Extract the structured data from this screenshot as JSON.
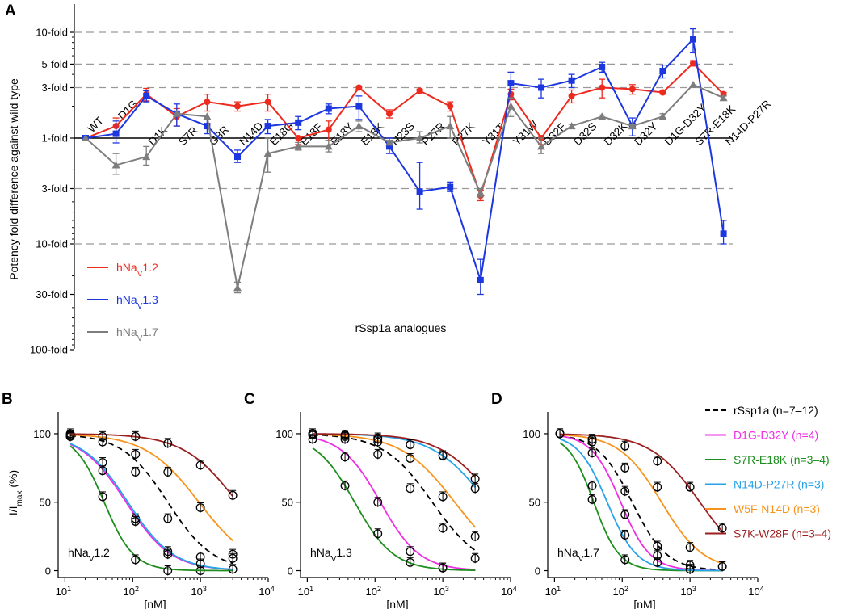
{
  "colors": {
    "hNav1_2": "#ee2a1e",
    "hNav1_3": "#1c37e0",
    "hNav1_7": "#7d7d7d",
    "rSsp1a": "#000000",
    "D1G-D32Y": "#ee2ee4",
    "S7R-E18K": "#1d8e1d",
    "N14D-P27R": "#27a3e8",
    "W5F-N14D": "#f7941d",
    "S7K-W28F": "#9b1f1f",
    "gridline": "#999999"
  },
  "chart_data": [
    {
      "panel": "A",
      "type": "line",
      "title": "",
      "xlabel": "rSsp1a analogues",
      "ylabel": "Potency fold difference against wild type",
      "ylabel_parts": {
        "pre": "Potency fold difference against wild type"
      },
      "scale": "log",
      "ylim_fold": [
        -100,
        20
      ],
      "y_ticks": [
        {
          "value": 10,
          "label": "10-fold",
          "dashed": true
        },
        {
          "value": 5,
          "label": "5-fold",
          "dashed": true
        },
        {
          "value": 3,
          "label": "3-fold",
          "dashed": true
        },
        {
          "value": 1,
          "label": "1-fold",
          "solid": true
        },
        {
          "value": -3,
          "label": "3-fold",
          "dashed": true
        },
        {
          "value": -10,
          "label": "10-fold",
          "dashed": true
        },
        {
          "value": -30,
          "label": "30-fold",
          "dashed": false
        },
        {
          "value": -100,
          "label": "100-fold",
          "dashed": false
        }
      ],
      "categories": [
        "WT",
        "D1G",
        "D1K",
        "S7R",
        "G8R",
        "N14D",
        "E18G",
        "E18F",
        "E18Y",
        "E18K",
        "H23S",
        "P27R",
        "P27K",
        "Y31T",
        "Y31W",
        "D32F",
        "D32S",
        "D32K",
        "D32Y",
        "D1G-D32Y",
        "S7R-E18K",
        "N14D-P27R"
      ],
      "series": [
        {
          "name": "hNaV1.2",
          "legend_main": "hNa",
          "legend_sub": "V",
          "legend_tail": "1.2",
          "color_key": "hNav1_2",
          "marker": "circle",
          "values": [
            1.0,
            1.3,
            2.6,
            1.6,
            2.2,
            2.0,
            2.2,
            -1.0,
            1.2,
            3.0,
            1.7,
            2.8,
            2.0,
            -3.5,
            2.6,
            -1.0,
            2.5,
            3.0,
            2.9,
            2.7,
            5.1,
            2.6
          ],
          "errors": [
            0,
            0.25,
            0.35,
            0.3,
            0.4,
            0.2,
            0.4,
            0.15,
            0.25,
            0.1,
            0.15,
            0.1,
            0.2,
            0.4,
            0.3,
            0.15,
            0.35,
            0.6,
            0.3,
            0.1,
            0.3,
            0.1
          ]
        },
        {
          "name": "hNaV1.3",
          "legend_main": "hNa",
          "legend_sub": "V",
          "legend_tail": "1.3",
          "color_key": "hNav1_3",
          "marker": "square",
          "values": [
            1.0,
            1.1,
            2.5,
            1.7,
            1.3,
            -1.5,
            1.3,
            1.4,
            1.9,
            2.0,
            -1.2,
            -3.2,
            -2.9,
            -22,
            3.3,
            3.0,
            3.5,
            4.7,
            1.3,
            4.3,
            8.6,
            -8.0
          ],
          "errors": [
            0,
            0.35,
            0.3,
            0.4,
            0.2,
            0.2,
            0.2,
            0.2,
            0.2,
            0.5,
            0.2,
            1.5,
            0.3,
            8,
            0.9,
            0.6,
            0.5,
            0.5,
            0.25,
            0.6,
            2.2,
            2.0
          ]
        },
        {
          "name": "hNaV1.7",
          "legend_main": "hNa",
          "legend_sub": "V",
          "legend_tail": "1.7",
          "color_key": "hNav1_7",
          "marker": "triangle",
          "values": [
            1.0,
            -1.8,
            -1.5,
            1.7,
            1.6,
            -26,
            -1.4,
            -1.2,
            -1.2,
            1.3,
            -1.1,
            1.0,
            1.3,
            -3.3,
            2.0,
            -1.2,
            1.3,
            1.6,
            1.3,
            1.6,
            3.2,
            2.4
          ],
          "errors": [
            0,
            0.4,
            0.3,
            0,
            0,
            3,
            0.7,
            0.1,
            0.15,
            0.15,
            0.05,
            0.15,
            0.3,
            0.3,
            0.4,
            0.2,
            0.05,
            0.05,
            0.05,
            0.1,
            0,
            0.1
          ]
        }
      ]
    },
    {
      "panel": "B",
      "type": "scatter",
      "panel_label_main": "hNa",
      "panel_label_sub": "V",
      "panel_label_tail": "1.2",
      "xlabel": "[nM]",
      "ylabel_main": "I/I",
      "ylabel_sub": "max",
      "ylabel_tail": " (%)",
      "x_ticks": [
        {
          "base": "10",
          "exp": "1"
        },
        {
          "base": "10",
          "exp": "2"
        },
        {
          "base": "10",
          "exp": "3"
        },
        {
          "base": "10",
          "exp": "4"
        }
      ],
      "y_ticks": [
        "0",
        "50",
        "100"
      ],
      "xlim_log10": [
        0.9,
        4.0
      ],
      "ylim": [
        -5,
        110
      ],
      "series": [
        {
          "name": "rSsp1a",
          "color_key": "rSsp1a",
          "ic50": 330,
          "hill": 1.3,
          "dashed": true,
          "points": [
            [
              12,
              99
            ],
            [
              36,
              94
            ],
            [
              110,
              72
            ],
            [
              330,
              38
            ],
            [
              1000,
              10
            ],
            [
              3000,
              9
            ]
          ]
        },
        {
          "name": "D1G-D32Y",
          "color_key": "D1G-D32Y",
          "ic50": 80,
          "hill": 1.3,
          "points": [
            [
              12,
              99
            ],
            [
              36,
              79
            ],
            [
              110,
              38
            ],
            [
              330,
              14
            ],
            [
              1000,
              0
            ]
          ]
        },
        {
          "name": "S7R-E18K",
          "color_key": "S7R-E18K",
          "ic50": 38,
          "hill": 2.0,
          "points": [
            [
              12,
              98
            ],
            [
              36,
              54
            ],
            [
              110,
              8
            ],
            [
              330,
              0
            ]
          ]
        },
        {
          "name": "N14D-P27R",
          "color_key": "N14D-P27R",
          "ic50": 85,
          "hill": 1.3,
          "points": [
            [
              12,
              98
            ],
            [
              36,
              73
            ],
            [
              110,
              36
            ],
            [
              330,
              12
            ],
            [
              1000,
              5
            ],
            [
              3000,
              1
            ]
          ]
        },
        {
          "name": "W5F-N14D",
          "color_key": "W5F-N14D",
          "ic50": 950,
          "hill": 1.1,
          "points": [
            [
              12,
              99
            ],
            [
              110,
              85
            ],
            [
              330,
              72
            ],
            [
              1000,
              46
            ],
            [
              3000,
              12
            ]
          ]
        },
        {
          "name": "S7K-W28F",
          "color_key": "S7K-W28F",
          "ic50": 3500,
          "hill": 1.1,
          "points": [
            [
              12,
              100
            ],
            [
              36,
              98
            ],
            [
              110,
              98
            ],
            [
              330,
              93
            ],
            [
              1000,
              77
            ],
            [
              3000,
              55
            ]
          ]
        }
      ]
    },
    {
      "panel": "C",
      "type": "scatter",
      "panel_label_main": "hNa",
      "panel_label_sub": "V",
      "panel_label_tail": "1.3",
      "xlabel": "[nM]",
      "x_ticks": [
        {
          "base": "10",
          "exp": "1"
        },
        {
          "base": "10",
          "exp": "2"
        },
        {
          "base": "10",
          "exp": "3"
        },
        {
          "base": "10",
          "exp": "4"
        }
      ],
      "y_ticks": [
        "0",
        "50",
        "100"
      ],
      "xlim_log10": [
        0.9,
        4.0
      ],
      "ylim": [
        -5,
        110
      ],
      "series": [
        {
          "name": "rSsp1a",
          "color_key": "rSsp1a",
          "ic50": 700,
          "hill": 1.2,
          "dashed": true,
          "points": [
            [
              12,
              99
            ],
            [
              36,
              96
            ],
            [
              110,
              85
            ],
            [
              330,
              60
            ],
            [
              1000,
              31
            ],
            [
              3000,
              9
            ]
          ]
        },
        {
          "name": "D1G-D32Y",
          "color_key": "D1G-D32Y",
          "ic50": 120,
          "hill": 1.5,
          "points": [
            [
              12,
              99
            ],
            [
              36,
              83
            ],
            [
              110,
              50
            ],
            [
              330,
              14
            ],
            [
              1000,
              2
            ]
          ]
        },
        {
          "name": "S7R-E18K",
          "color_key": "S7R-E18K",
          "ic50": 50,
          "hill": 1.5,
          "points": [
            [
              12,
              96
            ],
            [
              36,
              62
            ],
            [
              110,
              27
            ],
            [
              330,
              6
            ],
            [
              1000,
              2
            ]
          ]
        },
        {
          "name": "N14D-P27R",
          "color_key": "N14D-P27R",
          "ic50": 4500,
          "hill": 1.1,
          "points": [
            [
              12,
              100
            ],
            [
              36,
              99
            ],
            [
              110,
              97
            ],
            [
              330,
              92
            ],
            [
              1000,
              84
            ],
            [
              3000,
              60
            ]
          ]
        },
        {
          "name": "W5F-N14D",
          "color_key": "W5F-N14D",
          "ic50": 1500,
          "hill": 1.1,
          "points": [
            [
              12,
              100
            ],
            [
              36,
              98
            ],
            [
              110,
              94
            ],
            [
              330,
              82
            ],
            [
              1000,
              54
            ],
            [
              3000,
              25
            ]
          ]
        },
        {
          "name": "S7K-W28F",
          "color_key": "S7K-W28F",
          "ic50": 6000,
          "hill": 1.1,
          "points": [
            [
              12,
              100
            ],
            [
              36,
              99
            ],
            [
              110,
              96
            ],
            [
              330,
              92
            ],
            [
              1000,
              84
            ],
            [
              3000,
              67
            ]
          ]
        }
      ]
    },
    {
      "panel": "D",
      "type": "scatter",
      "panel_label_main": "hNa",
      "panel_label_sub": "V",
      "panel_label_tail": "1.7",
      "xlabel": "[nM]",
      "x_ticks": [
        {
          "base": "10",
          "exp": "1"
        },
        {
          "base": "10",
          "exp": "2"
        },
        {
          "base": "10",
          "exp": "3"
        },
        {
          "base": "10",
          "exp": "4"
        }
      ],
      "y_ticks": [
        "0",
        "50",
        "100"
      ],
      "xlim_log10": [
        0.9,
        4.0
      ],
      "ylim": [
        -5,
        110
      ],
      "series": [
        {
          "name": "rSsp1a",
          "color_key": "rSsp1a",
          "ic50": 140,
          "hill": 1.7,
          "dashed": true,
          "points": [
            [
              12,
              100
            ],
            [
              36,
              96
            ],
            [
              110,
              58
            ],
            [
              330,
              18
            ],
            [
              1000,
              4
            ],
            [
              3000,
              3
            ]
          ]
        },
        {
          "name": "D1G-D32Y",
          "color_key": "D1G-D32Y",
          "ic50": 95,
          "hill": 2.0,
          "points": [
            [
              12,
              100
            ],
            [
              36,
              86
            ],
            [
              110,
              41
            ],
            [
              330,
              11
            ],
            [
              1000,
              1
            ]
          ]
        },
        {
          "name": "S7R-E18K",
          "color_key": "S7R-E18K",
          "ic50": 38,
          "hill": 2.3,
          "points": [
            [
              12,
              100
            ],
            [
              36,
              52
            ],
            [
              110,
              8
            ]
          ]
        },
        {
          "name": "N14D-P27R",
          "color_key": "N14D-P27R",
          "ic50": 60,
          "hill": 2.0,
          "points": [
            [
              12,
              100
            ],
            [
              36,
              62
            ],
            [
              110,
              26
            ],
            [
              330,
              6
            ],
            [
              1000,
              1
            ]
          ]
        },
        {
          "name": "W5F-N14D",
          "color_key": "W5F-N14D",
          "ic50": 380,
          "hill": 1.4,
          "points": [
            [
              12,
              100
            ],
            [
              36,
              94
            ],
            [
              110,
              75
            ],
            [
              330,
              61
            ],
            [
              1000,
              17
            ],
            [
              3000,
              3
            ]
          ]
        },
        {
          "name": "S7K-W28F",
          "color_key": "S7K-W28F",
          "ic50": 1400,
          "hill": 1.2,
          "points": [
            [
              12,
              100
            ],
            [
              36,
              96
            ],
            [
              110,
              91
            ],
            [
              330,
              80
            ],
            [
              1000,
              61
            ],
            [
              3000,
              31
            ]
          ]
        }
      ]
    }
  ],
  "legend_bcd": [
    {
      "label": "rSsp1a (n=7–12)",
      "color_key": "rSsp1a",
      "dashed": true
    },
    {
      "label": "D1G-D32Y (n=4)",
      "color_key": "D1G-D32Y"
    },
    {
      "label": "S7R-E18K (n=3–4)",
      "color_key": "S7R-E18K"
    },
    {
      "label": "N14D-P27R (n=3)",
      "color_key": "N14D-P27R"
    },
    {
      "label": "W5F-N14D (n=3)",
      "color_key": "W5F-N14D"
    },
    {
      "label": "S7K-W28F (n=3–4)",
      "color_key": "S7K-W28F"
    }
  ],
  "panel_letters": {
    "A": "A",
    "B": "B",
    "C": "C",
    "D": "D"
  }
}
